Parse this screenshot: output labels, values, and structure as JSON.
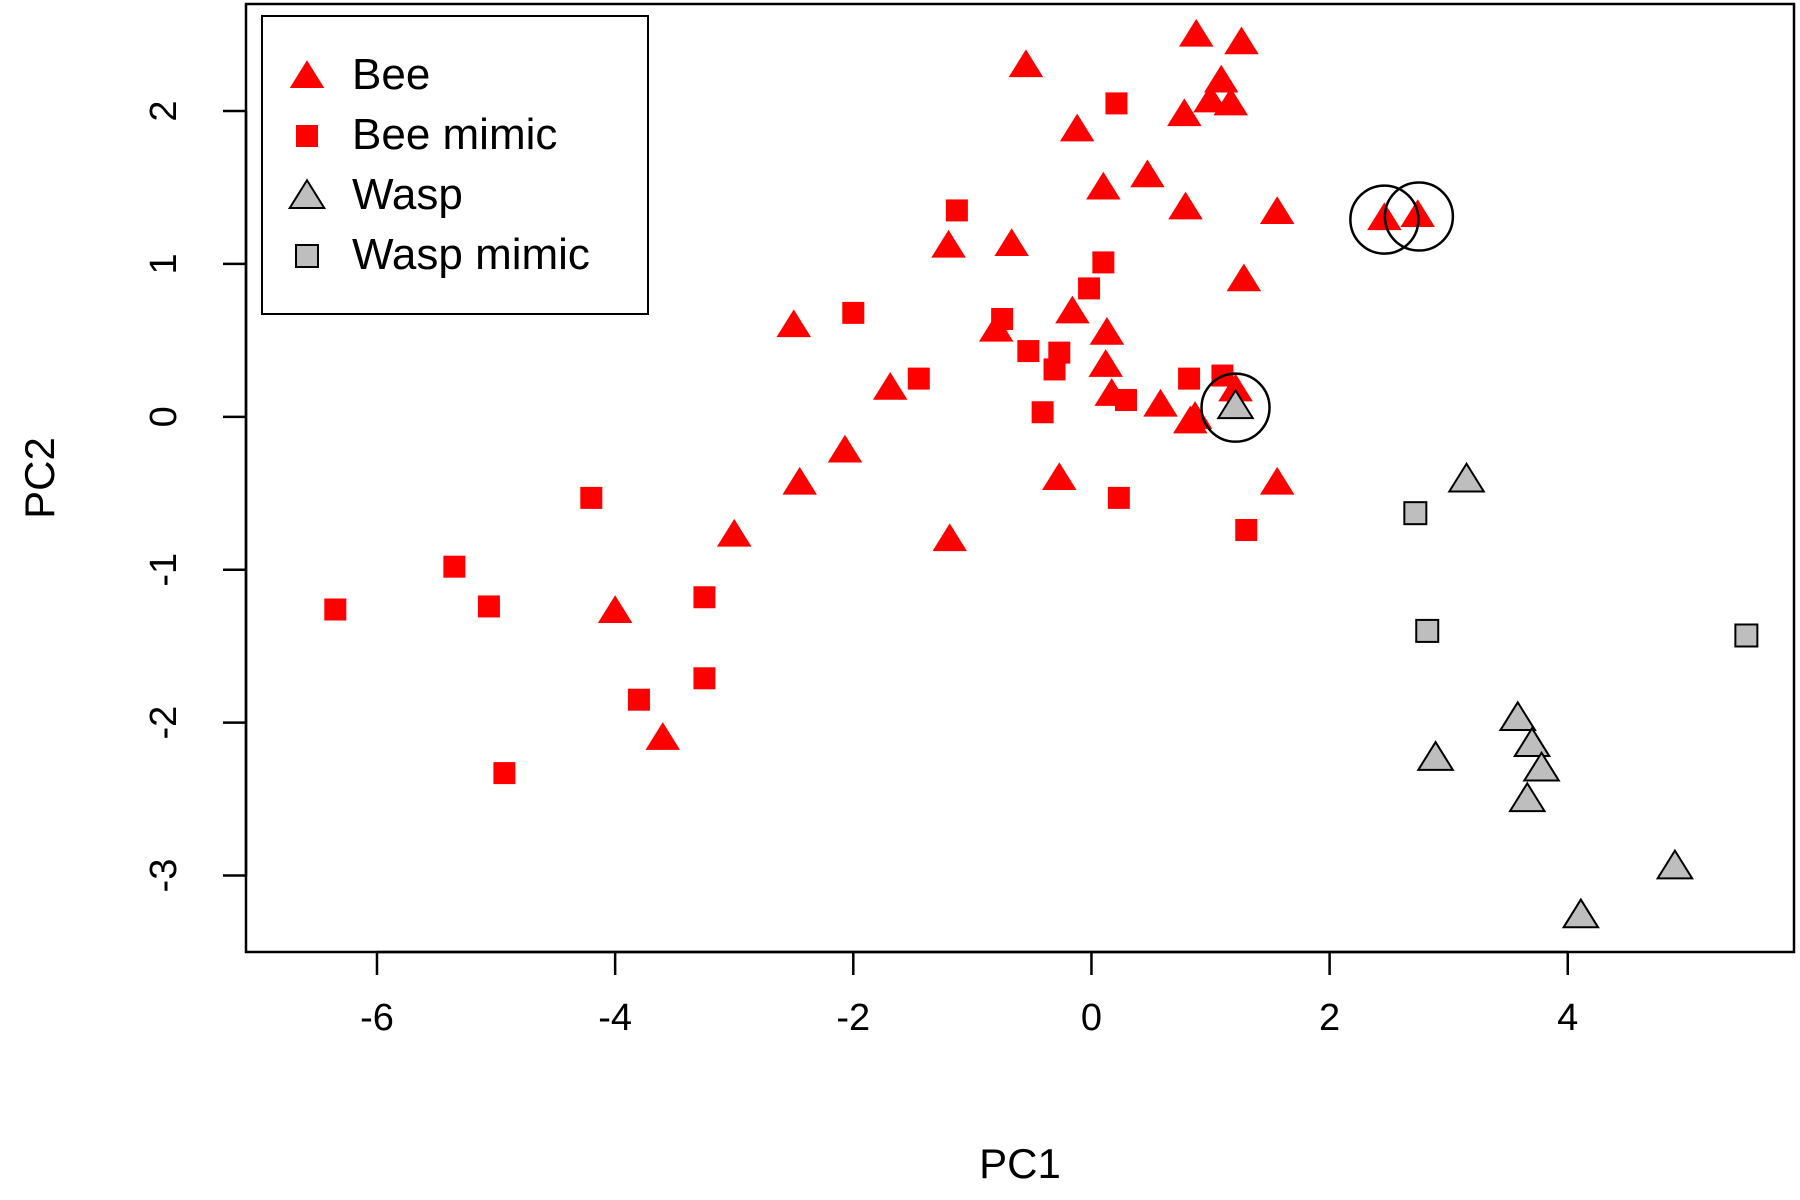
{
  "chart_data": {
    "type": "scatter",
    "title": "",
    "xlabel": "PC1",
    "ylabel": "PC2",
    "xlim": [
      -7.1,
      5.9
    ],
    "ylim": [
      -3.5,
      2.7
    ],
    "xticks": [
      -6,
      -4,
      -2,
      0,
      2,
      4
    ],
    "yticks": [
      -3,
      -2,
      -1,
      0,
      1,
      2
    ],
    "grid": false,
    "legend_position": "top-left",
    "colors": {
      "bee": "#ff0000",
      "wasp": "#bebebe",
      "outline": "#000000"
    },
    "series": [
      {
        "name": "Bee",
        "marker": "triangle",
        "fill": "#ff0000",
        "stroke": "none",
        "points": [
          [
            -0.55,
            2.3
          ],
          [
            0.88,
            2.5
          ],
          [
            1.26,
            2.45
          ],
          [
            1.09,
            2.2
          ],
          [
            1.0,
            2.07
          ],
          [
            1.17,
            2.05
          ],
          [
            0.78,
            1.98
          ],
          [
            -0.12,
            1.88
          ],
          [
            0.1,
            1.5
          ],
          [
            0.47,
            1.58
          ],
          [
            0.79,
            1.37
          ],
          [
            1.56,
            1.34
          ],
          [
            2.46,
            1.3
          ],
          [
            2.74,
            1.32
          ],
          [
            -1.2,
            1.12
          ],
          [
            -0.67,
            1.13
          ],
          [
            1.28,
            0.9
          ],
          [
            -0.16,
            0.69
          ],
          [
            -2.5,
            0.6
          ],
          [
            -0.8,
            0.57
          ],
          [
            0.13,
            0.55
          ],
          [
            0.12,
            0.34
          ],
          [
            -1.69,
            0.19
          ],
          [
            0.17,
            0.15
          ],
          [
            0.58,
            0.08
          ],
          [
            1.21,
            0.18
          ],
          [
            0.83,
            -0.03
          ],
          [
            0.87,
            0.0
          ],
          [
            -2.07,
            -0.22
          ],
          [
            -2.45,
            -0.43
          ],
          [
            -0.27,
            -0.4
          ],
          [
            1.56,
            -0.43
          ],
          [
            -3.0,
            -0.77
          ],
          [
            -1.19,
            -0.8
          ],
          [
            -4.0,
            -1.27
          ],
          [
            -3.6,
            -2.1
          ]
        ]
      },
      {
        "name": "Bee mimic",
        "marker": "square",
        "fill": "#ff0000",
        "stroke": "none",
        "points": [
          [
            0.21,
            2.05
          ],
          [
            -1.13,
            1.35
          ],
          [
            0.1,
            1.01
          ],
          [
            -0.02,
            0.84
          ],
          [
            -2.0,
            0.68
          ],
          [
            -0.75,
            0.64
          ],
          [
            -0.53,
            0.43
          ],
          [
            -0.27,
            0.42
          ],
          [
            -0.31,
            0.31
          ],
          [
            -1.45,
            0.25
          ],
          [
            0.82,
            0.25
          ],
          [
            1.1,
            0.27
          ],
          [
            0.29,
            0.11
          ],
          [
            -0.41,
            0.03
          ],
          [
            -4.2,
            -0.53
          ],
          [
            0.23,
            -0.53
          ],
          [
            1.3,
            -0.74
          ],
          [
            -5.35,
            -0.98
          ],
          [
            -5.06,
            -1.24
          ],
          [
            -6.35,
            -1.26
          ],
          [
            -3.25,
            -1.18
          ],
          [
            -3.8,
            -1.85
          ],
          [
            -3.25,
            -1.71
          ],
          [
            -4.93,
            -2.33
          ]
        ]
      },
      {
        "name": "Wasp",
        "marker": "triangle",
        "fill": "#bebebe",
        "stroke": "#000000",
        "points": [
          [
            1.21,
            0.07
          ],
          [
            3.15,
            -0.41
          ],
          [
            3.58,
            -1.97
          ],
          [
            3.7,
            -2.14
          ],
          [
            3.78,
            -2.3
          ],
          [
            2.89,
            -2.23
          ],
          [
            3.66,
            -2.5
          ],
          [
            4.9,
            -2.94
          ],
          [
            4.11,
            -3.26
          ]
        ]
      },
      {
        "name": "Wasp mimic",
        "marker": "square",
        "fill": "#bebebe",
        "stroke": "#000000",
        "points": [
          [
            2.72,
            -0.63
          ],
          [
            2.82,
            -1.4
          ],
          [
            5.5,
            -1.43
          ]
        ]
      }
    ],
    "annotations": [
      {
        "type": "circle",
        "x": 2.46,
        "y": 1.29
      },
      {
        "type": "circle",
        "x": 2.75,
        "y": 1.31
      },
      {
        "type": "circle",
        "x": 1.21,
        "y": 0.06
      }
    ]
  }
}
